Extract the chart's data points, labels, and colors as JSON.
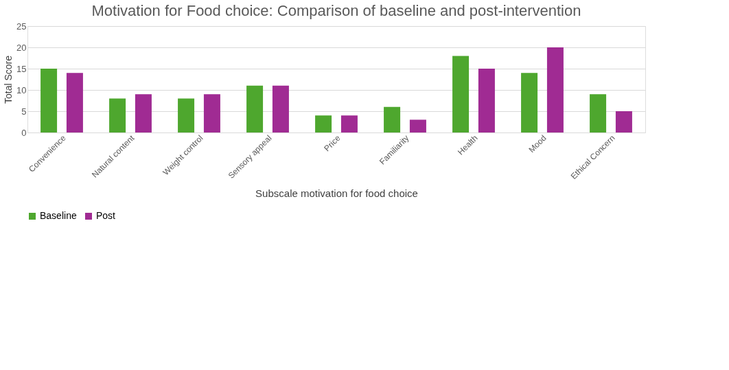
{
  "chart_data": {
    "type": "bar",
    "title": "Motivation for Food choice: Comparison of baseline and post-intervention",
    "xlabel": "Subscale motivation for food choice",
    "ylabel": "Total Score",
    "categories": [
      "Convenience",
      "Natural content",
      "Weight control",
      "Sensory appeal",
      "Price",
      "Familiarity",
      "Health",
      "Mood",
      "Ethical Concern"
    ],
    "series": [
      {
        "name": "Baseline",
        "color": "#4ea72e",
        "values": [
          15,
          8,
          8,
          11,
          4,
          6,
          18,
          14,
          9
        ]
      },
      {
        "name": "Post",
        "color": "#a02b93",
        "values": [
          14,
          9,
          9,
          11,
          4,
          3,
          15,
          20,
          5
        ]
      }
    ],
    "ylim": [
      0,
      25
    ],
    "yticks": [
      0,
      5,
      10,
      15,
      20,
      25
    ],
    "grid": "y",
    "legend": "bottom"
  }
}
